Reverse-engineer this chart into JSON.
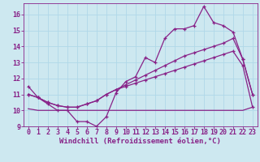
{
  "background_color": "#cde8f0",
  "grid_color": "#b0d8e8",
  "line_color": "#882288",
  "xlim": [
    -0.5,
    23.5
  ],
  "ylim": [
    9,
    16.7
  ],
  "yticks": [
    9,
    10,
    11,
    12,
    13,
    14,
    15,
    16
  ],
  "xticks": [
    0,
    1,
    2,
    3,
    4,
    5,
    6,
    7,
    8,
    9,
    10,
    11,
    12,
    13,
    14,
    15,
    16,
    17,
    18,
    19,
    20,
    21,
    22,
    23
  ],
  "xlabel": "Windchill (Refroidissement éolien,°C)",
  "xlabel_fontsize": 6.5,
  "tick_fontsize": 6.0,
  "line1_x": [
    0,
    1,
    2,
    3,
    4,
    5,
    6,
    7,
    8,
    9,
    10,
    11,
    12,
    13,
    14,
    15,
    16,
    17,
    18,
    19,
    20,
    21,
    22,
    23
  ],
  "line1_y": [
    11.5,
    10.8,
    10.4,
    10.0,
    10.0,
    9.3,
    9.3,
    9.0,
    9.6,
    11.1,
    11.8,
    12.1,
    13.3,
    13.0,
    14.5,
    15.1,
    15.1,
    15.3,
    16.5,
    15.5,
    15.3,
    14.9,
    13.2,
    11.0
  ],
  "line2_x": [
    0,
    1,
    2,
    3,
    4,
    5,
    6,
    7,
    8,
    9,
    10,
    11,
    12,
    13,
    14,
    15,
    16,
    17,
    18,
    19,
    20,
    21,
    22,
    23
  ],
  "line2_y": [
    11.0,
    10.8,
    10.5,
    10.3,
    10.2,
    10.2,
    10.4,
    10.6,
    11.0,
    11.3,
    11.6,
    11.9,
    12.2,
    12.5,
    12.8,
    13.1,
    13.4,
    13.6,
    13.8,
    14.0,
    14.2,
    14.5,
    13.2,
    11.0
  ],
  "line3_x": [
    0,
    1,
    2,
    3,
    4,
    5,
    6,
    7,
    8,
    9,
    10,
    11,
    12,
    13,
    14,
    15,
    16,
    17,
    18,
    19,
    20,
    21,
    22,
    23
  ],
  "line3_y": [
    11.0,
    10.8,
    10.5,
    10.3,
    10.2,
    10.2,
    10.4,
    10.6,
    11.0,
    11.3,
    11.5,
    11.7,
    11.9,
    12.1,
    12.3,
    12.5,
    12.7,
    12.9,
    13.1,
    13.3,
    13.5,
    13.7,
    12.8,
    10.2
  ],
  "line4_x": [
    0,
    1,
    2,
    3,
    4,
    5,
    6,
    7,
    8,
    9,
    10,
    11,
    12,
    13,
    14,
    15,
    16,
    17,
    18,
    19,
    20,
    21,
    22,
    23
  ],
  "line4_y": [
    10.1,
    10.0,
    10.0,
    10.0,
    10.0,
    10.0,
    10.0,
    10.0,
    10.0,
    10.0,
    10.0,
    10.0,
    10.0,
    10.0,
    10.0,
    10.0,
    10.0,
    10.0,
    10.0,
    10.0,
    10.0,
    10.0,
    10.0,
    10.2
  ]
}
